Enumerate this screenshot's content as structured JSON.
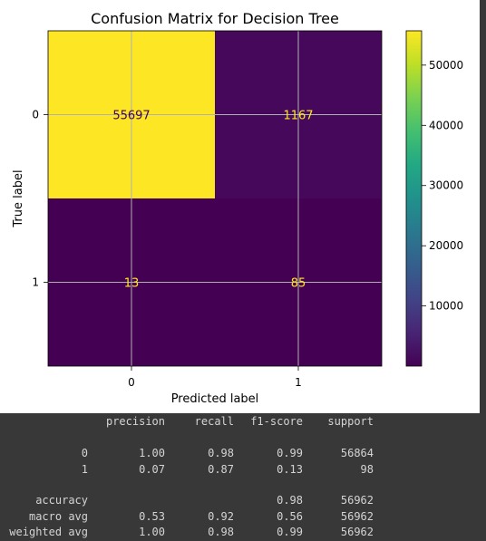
{
  "chart_data": {
    "type": "heatmap",
    "title": "Confusion Matrix for Decision Tree",
    "xlabel": "Predicted label",
    "ylabel": "True label",
    "x_ticks": [
      "0",
      "1"
    ],
    "y_ticks": [
      "0",
      "1"
    ],
    "matrix": [
      [
        55697,
        1167
      ],
      [
        13,
        85
      ]
    ],
    "cell_labels": [
      [
        "55697",
        "1167"
      ],
      [
        "13",
        "85"
      ]
    ],
    "colormap": "viridis",
    "colorbar_ticks": [
      10000,
      20000,
      30000,
      40000,
      50000
    ],
    "colorbar_tick_labels": [
      "10000",
      "20000",
      "30000",
      "40000",
      "50000"
    ],
    "colorbar_range": [
      13,
      55697
    ],
    "grid": true,
    "text_color_low": "#fde725",
    "text_color_high": "#440154"
  },
  "report": {
    "headers": [
      "precision",
      "recall",
      "f1-score",
      "support"
    ],
    "rows": [
      {
        "label": "0",
        "precision": "1.00",
        "recall": "0.98",
        "f1": "0.99",
        "support": "56864"
      },
      {
        "label": "1",
        "precision": "0.07",
        "recall": "0.87",
        "f1": "0.13",
        "support": "98"
      },
      {
        "label": "accuracy",
        "precision": "",
        "recall": "",
        "f1": "0.98",
        "support": "56962"
      },
      {
        "label": "macro avg",
        "precision": "0.53",
        "recall": "0.92",
        "f1": "0.56",
        "support": "56962"
      },
      {
        "label": "weighted avg",
        "precision": "1.00",
        "recall": "0.98",
        "f1": "0.99",
        "support": "56962"
      }
    ]
  }
}
